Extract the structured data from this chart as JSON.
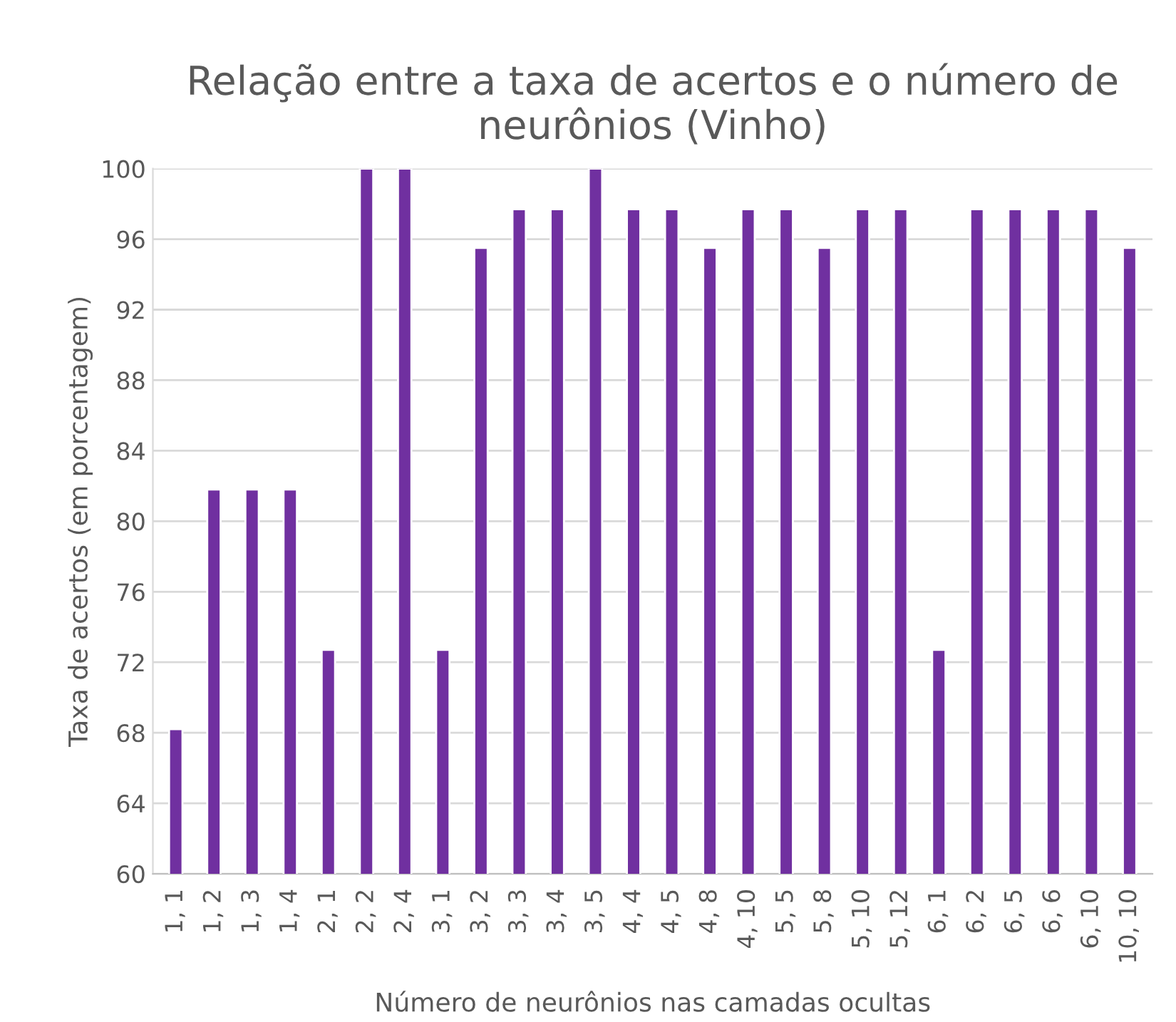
{
  "chart_data": {
    "type": "bar",
    "title": "Relação entre a taxa de acertos e o número de neurônios (Vinho)",
    "xlabel": "Número de neurônios nas camadas ocultas",
    "ylabel": "Taxa de acertos (em porcentagem)",
    "categories": [
      "1, 1",
      "1, 2",
      "1, 3",
      "1, 4",
      "2, 1",
      "2, 2",
      "2, 4",
      "3, 1",
      "3, 2",
      "3, 3",
      "3, 4",
      "3, 5",
      "4, 4",
      "4, 5",
      "4, 8",
      "4, 10",
      "5, 5",
      "5, 8",
      "5, 10",
      "5, 12",
      "6, 1",
      "6, 2",
      "6, 5",
      "6, 6",
      "6, 10",
      "10, 10"
    ],
    "values": [
      68.2,
      81.8,
      81.8,
      81.8,
      72.7,
      100,
      100,
      72.7,
      95.5,
      97.7,
      97.7,
      100,
      97.7,
      97.7,
      95.5,
      97.7,
      97.7,
      95.5,
      97.7,
      97.7,
      72.7,
      97.7,
      97.7,
      97.7,
      97.7,
      95.5
    ],
    "color": "#7030a0",
    "ylim": [
      60,
      100
    ],
    "yticks": [
      60,
      64,
      68,
      72,
      76,
      80,
      84,
      88,
      92,
      96,
      100
    ],
    "grid": "y",
    "legend": false
  }
}
